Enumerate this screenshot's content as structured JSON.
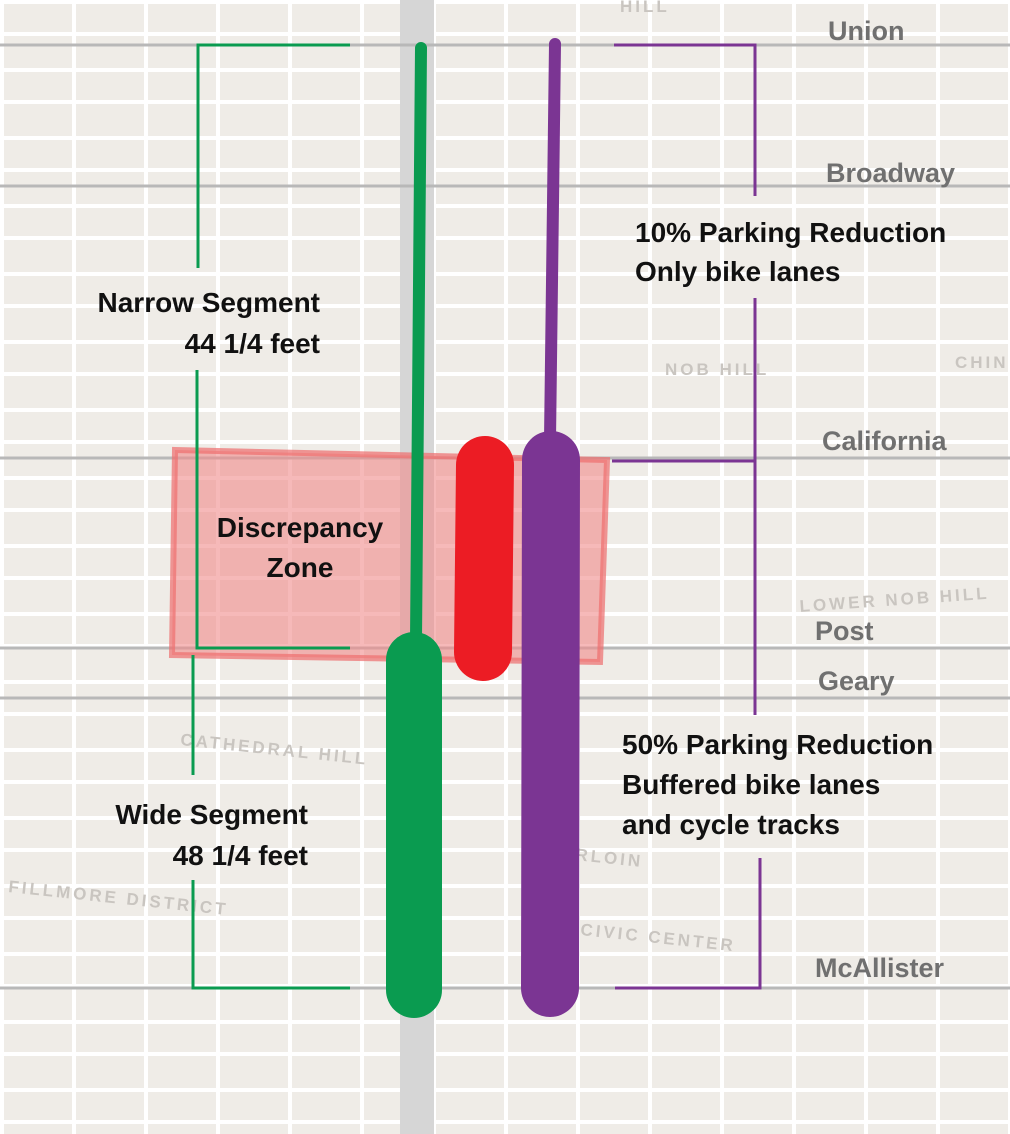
{
  "streets": [
    "Union",
    "Broadway",
    "California",
    "Post",
    "Geary",
    "McAllister"
  ],
  "neighborhoods": [
    "HILL",
    "NOB HILL",
    "CHIN",
    "LOWER NOB HILL",
    "CATHEDRAL HILL",
    "FILLMORE DISTRICT",
    "RLOIN",
    "CIVIC CENTER"
  ],
  "narrow_segment": [
    "Narrow Segment",
    "44 1/4 feet"
  ],
  "wide_segment": [
    "Wide Segment",
    "48 1/4 feet"
  ],
  "discrepancy": [
    "Discrepancy",
    "Zone"
  ],
  "north_reduction": [
    "10% Parking Reduction",
    "Only bike lanes"
  ],
  "south_reduction": [
    "50% Parking Reduction",
    "Buffered bike lanes",
    "and cycle tracks"
  ]
}
